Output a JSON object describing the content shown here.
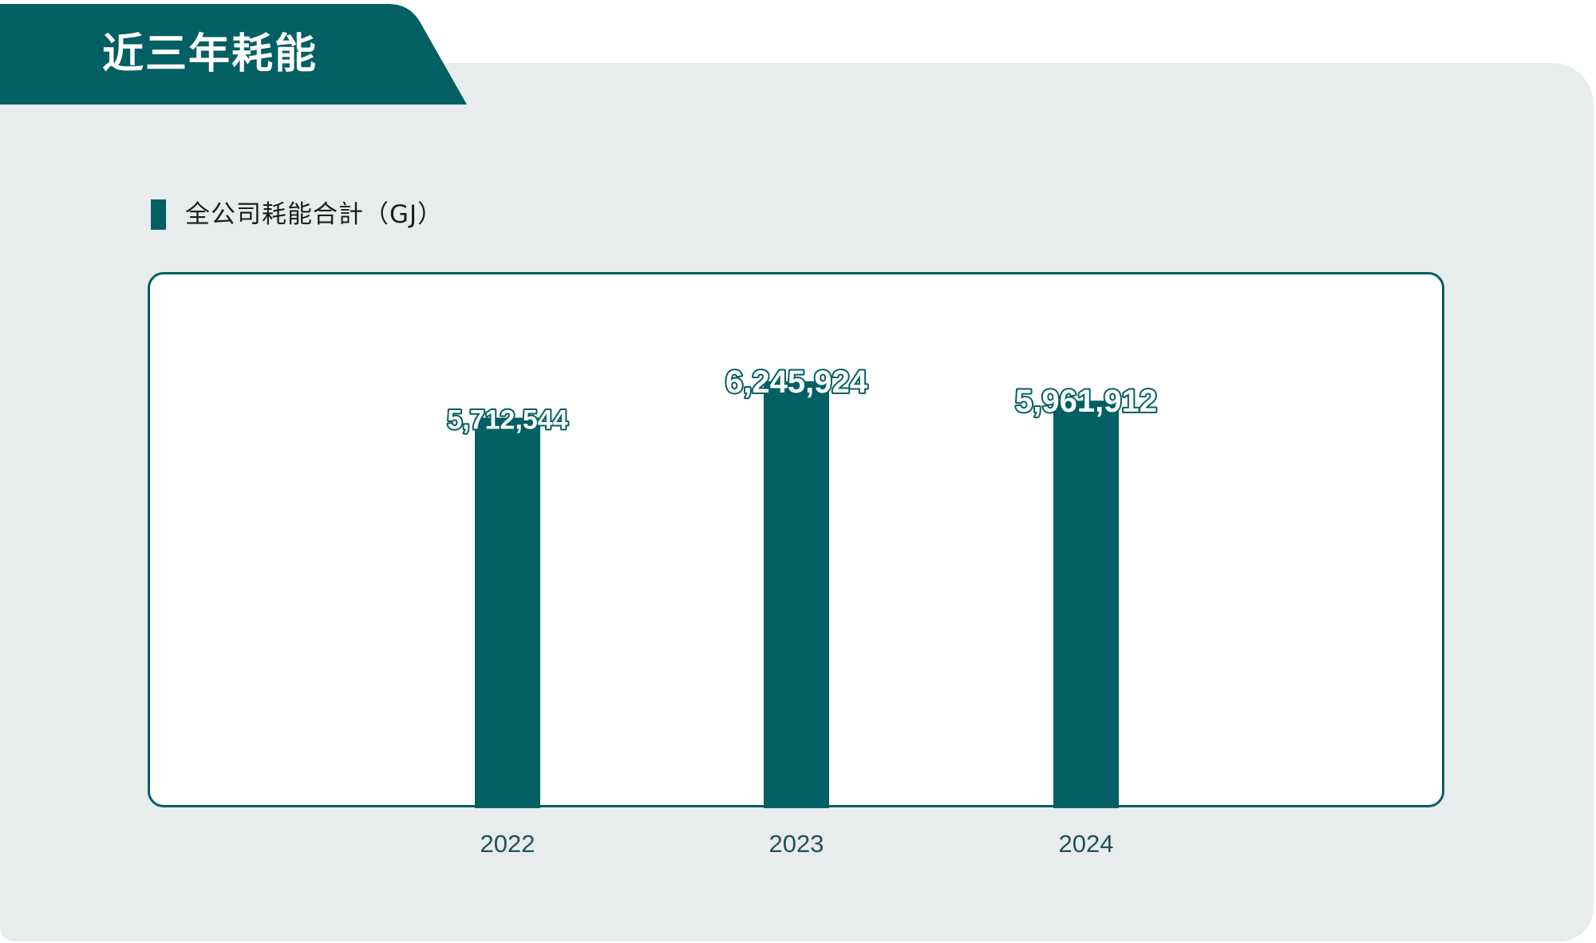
{
  "header": {
    "title": "近三年耗能"
  },
  "subtitle": "全公司耗能合計（GJ）",
  "colors": {
    "accent": "#025f63",
    "panel_background": "#e8eced",
    "plot_background": "#ffffff"
  },
  "chart_data": {
    "type": "bar",
    "title": "全公司耗能合計（GJ）",
    "categories": [
      "2022",
      "2023",
      "2024"
    ],
    "values": [
      5712544,
      6245924,
      5961912
    ],
    "value_labels": [
      "5,712,544",
      "6,245,924",
      "5,961,912"
    ],
    "series": [
      {
        "values": [
          5712544,
          6245924,
          5961912
        ],
        "color": "#025f63"
      }
    ],
    "xlabel": "",
    "ylabel": "",
    "ylim": [
      0,
      8000000
    ],
    "grid": false,
    "legend": "none"
  }
}
